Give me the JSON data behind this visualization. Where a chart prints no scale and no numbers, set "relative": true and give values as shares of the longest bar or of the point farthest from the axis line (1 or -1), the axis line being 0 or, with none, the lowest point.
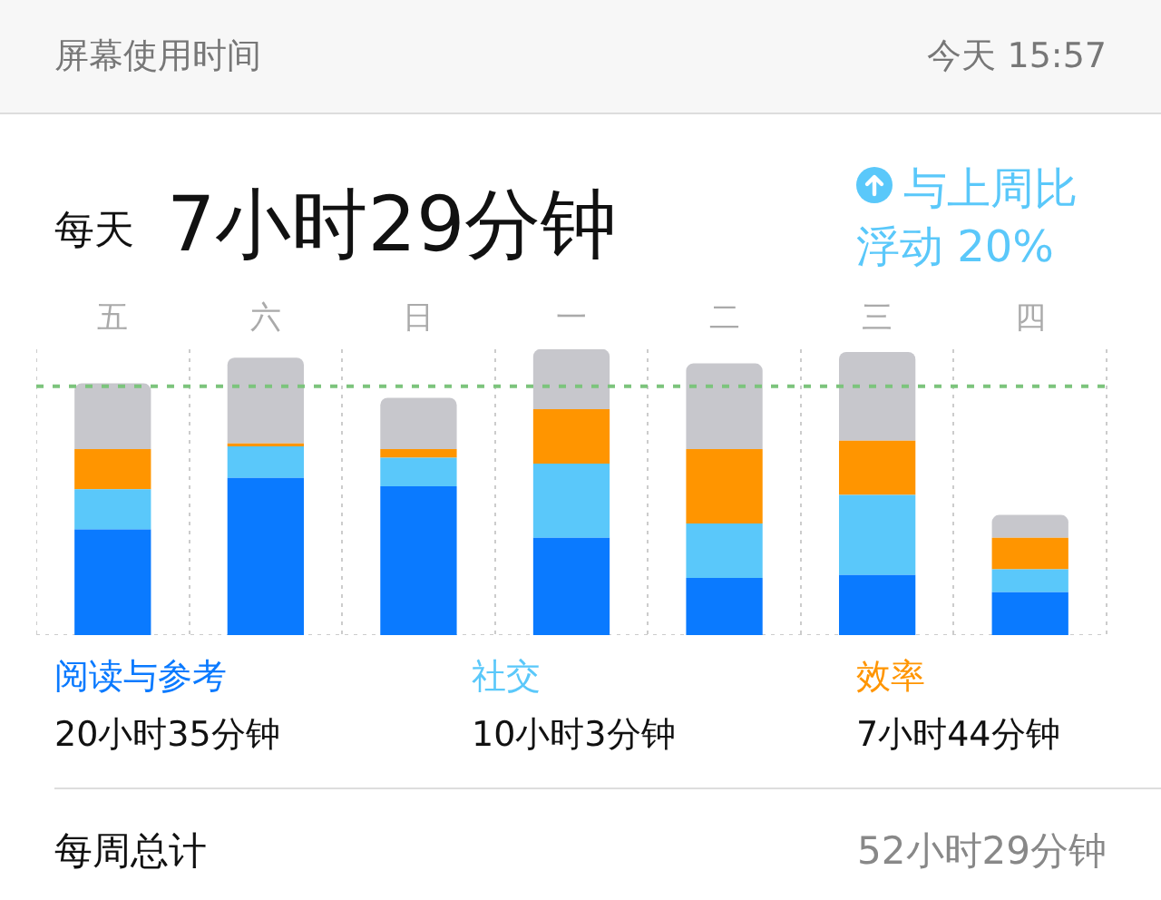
{
  "chart_data": {
    "type": "bar",
    "title": "屏幕使用时间",
    "subtitle": "今天 15:57",
    "categories": [
      "五",
      "六",
      "日",
      "一",
      "二",
      "三",
      "四"
    ],
    "stacked": true,
    "relative": true,
    "grid": "x",
    "legend": "bottom",
    "series": [
      {
        "name": "阅读与参考",
        "color": "#0a7aff",
        "values": [
          0.37,
          0.55,
          0.52,
          0.34,
          0.2,
          0.21,
          0.15
        ]
      },
      {
        "name": "社交",
        "color": "#5ac8fa",
        "values": [
          0.14,
          0.11,
          0.1,
          0.26,
          0.19,
          0.28,
          0.08
        ]
      },
      {
        "name": "效率",
        "color": "#ff9500",
        "values": [
          0.14,
          0.01,
          0.03,
          0.19,
          0.26,
          0.19,
          0.11
        ]
      },
      {
        "color": "#c7c7cc",
        "values": [
          0.23,
          0.3,
          0.18,
          0.21,
          0.3,
          0.31,
          0.08
        ]
      }
    ],
    "ref_lines": [
      {
        "axis": "y",
        "value": 0.87,
        "color": "#7cc47c",
        "line_style": "dashed"
      }
    ],
    "annotations": [
      "每天",
      "7小时29分钟",
      "与上周比",
      "浮动 20%",
      "20小时35分钟",
      "10小时3分钟",
      "7小时44分钟",
      "每周总计",
      "52小时29分钟"
    ]
  }
}
